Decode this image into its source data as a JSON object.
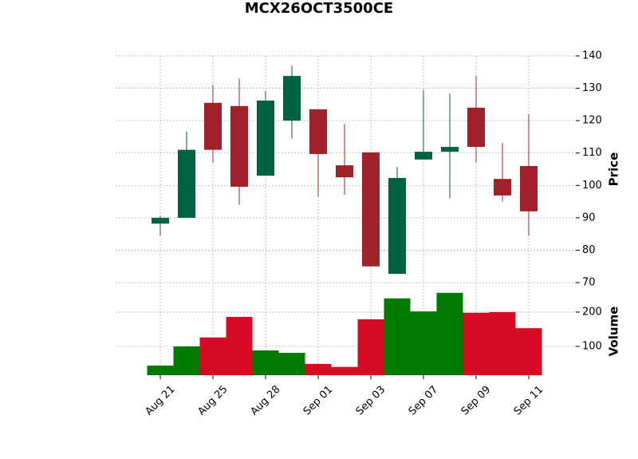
{
  "chart_data": {
    "type": "candlestick",
    "title": "MCX26OCT3500CE",
    "categories": [
      "Aug 21",
      null,
      "Aug 25",
      null,
      "Aug 28",
      null,
      "Sep 01",
      null,
      "Sep 03",
      null,
      "Sep 07",
      null,
      "Sep 09",
      null,
      "Sep 11"
    ],
    "open": [
      88.2,
      90,
      125.5,
      124.5,
      103,
      120,
      123.5,
      106.2,
      110.2,
      72.7,
      108,
      110.4,
      124,
      102,
      106
    ],
    "high": [
      90.7,
      116.6,
      131,
      133,
      129.2,
      137,
      123.5,
      119,
      110.2,
      105.7,
      129.4,
      128.4,
      133.8,
      113.1,
      122
    ],
    "low": [
      84.5,
      90,
      107,
      94,
      103,
      114.4,
      96.6,
      97.1,
      75,
      72.7,
      108,
      96,
      107,
      95,
      84.5
    ],
    "close": [
      90,
      111,
      111,
      99.6,
      126.2,
      133.8,
      109.7,
      102.5,
      75,
      102.3,
      110.4,
      111.9,
      111.9,
      96.9,
      92
    ],
    "up_color": "#006340",
    "down_color": "#a02128",
    "ylabel": "Price",
    "ylim": [
      70,
      140
    ],
    "yticks": [
      70,
      80,
      90,
      100,
      110,
      120,
      130,
      140
    ],
    "volume": {
      "label": "Volume",
      "values": [
        44,
        100,
        126,
        186,
        88,
        81,
        49,
        40,
        179,
        240,
        202,
        256,
        198,
        200,
        153
      ],
      "up_color": "#007a00",
      "down_color": "#d60a22",
      "ylim": [
        16,
        286
      ],
      "yticks": [
        100,
        200
      ]
    },
    "grid": true
  }
}
